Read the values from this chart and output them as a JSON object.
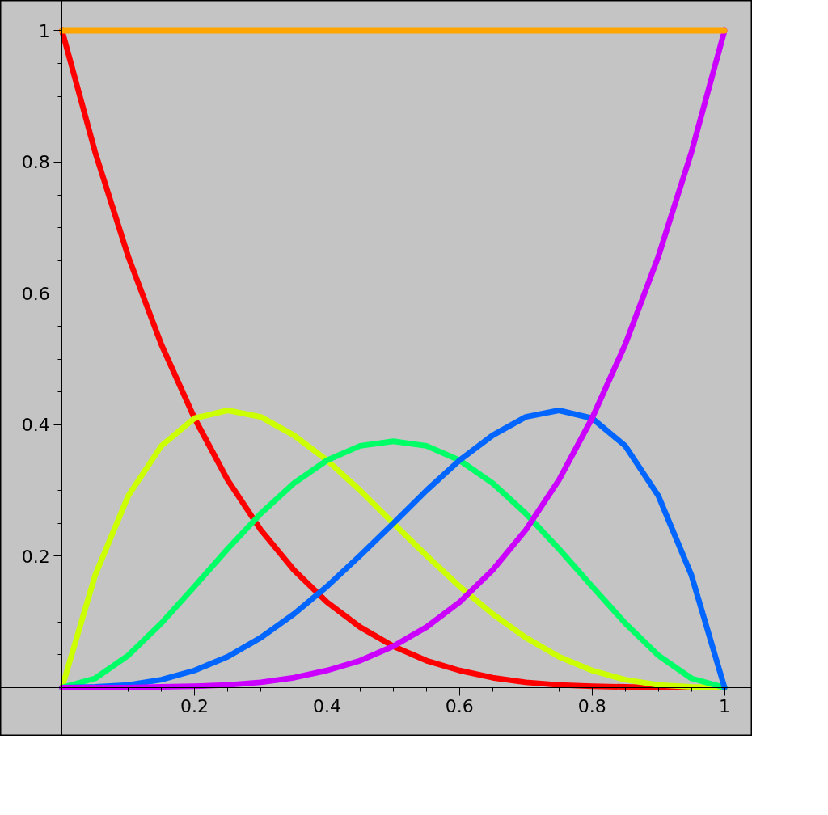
{
  "chart_data": {
    "type": "line",
    "x": [
      0,
      0.05,
      0.1,
      0.15,
      0.2,
      0.25,
      0.3,
      0.35,
      0.4,
      0.45,
      0.5,
      0.55,
      0.6,
      0.65,
      0.7,
      0.75,
      0.8,
      0.85,
      0.9,
      0.95,
      1
    ],
    "series": [
      {
        "color": "#ff0000",
        "values": [
          1,
          0.815,
          0.656,
          0.522,
          0.41,
          0.316,
          0.24,
          0.179,
          0.13,
          0.092,
          0.063,
          0.041,
          0.026,
          0.015,
          0.008,
          0.004,
          0.002,
          0.001,
          0,
          0,
          0
        ]
      },
      {
        "color": "#ccff00",
        "values": [
          0,
          0.171,
          0.292,
          0.368,
          0.41,
          0.422,
          0.412,
          0.384,
          0.346,
          0.3,
          0.25,
          0.201,
          0.154,
          0.112,
          0.076,
          0.047,
          0.026,
          0.012,
          0.004,
          0.001,
          0
        ]
      },
      {
        "color": "#00ff66",
        "values": [
          0,
          0.014,
          0.049,
          0.098,
          0.154,
          0.211,
          0.265,
          0.311,
          0.346,
          0.368,
          0.375,
          0.368,
          0.346,
          0.311,
          0.265,
          0.211,
          0.154,
          0.098,
          0.049,
          0.014,
          0
        ]
      },
      {
        "color": "#0066ff",
        "values": [
          0,
          0.001,
          0.004,
          0.012,
          0.026,
          0.047,
          0.076,
          0.112,
          0.154,
          0.201,
          0.25,
          0.3,
          0.346,
          0.384,
          0.412,
          0.422,
          0.41,
          0.368,
          0.292,
          0.171,
          0
        ]
      },
      {
        "color": "#cc00ff",
        "values": [
          0,
          0,
          0,
          0.001,
          0.002,
          0.004,
          0.008,
          0.015,
          0.026,
          0.041,
          0.063,
          0.092,
          0.13,
          0.179,
          0.24,
          0.316,
          0.41,
          0.522,
          0.656,
          0.815,
          1
        ]
      },
      {
        "color": "#ffa500",
        "values": [
          1,
          1,
          1,
          1,
          1,
          1,
          1,
          1,
          1,
          1,
          1,
          1,
          1,
          1,
          1,
          1,
          1,
          1,
          1,
          1,
          1
        ]
      }
    ],
    "xlim": [
      -0.093,
      1.042
    ],
    "ylim": [
      -0.074,
      1.046
    ],
    "xticks": [
      0.2,
      0.4,
      0.6,
      0.8,
      1
    ],
    "yticks": [
      0.2,
      0.4,
      0.6,
      0.8,
      1
    ],
    "grid": false,
    "marker": "none",
    "line_style": "solid"
  }
}
